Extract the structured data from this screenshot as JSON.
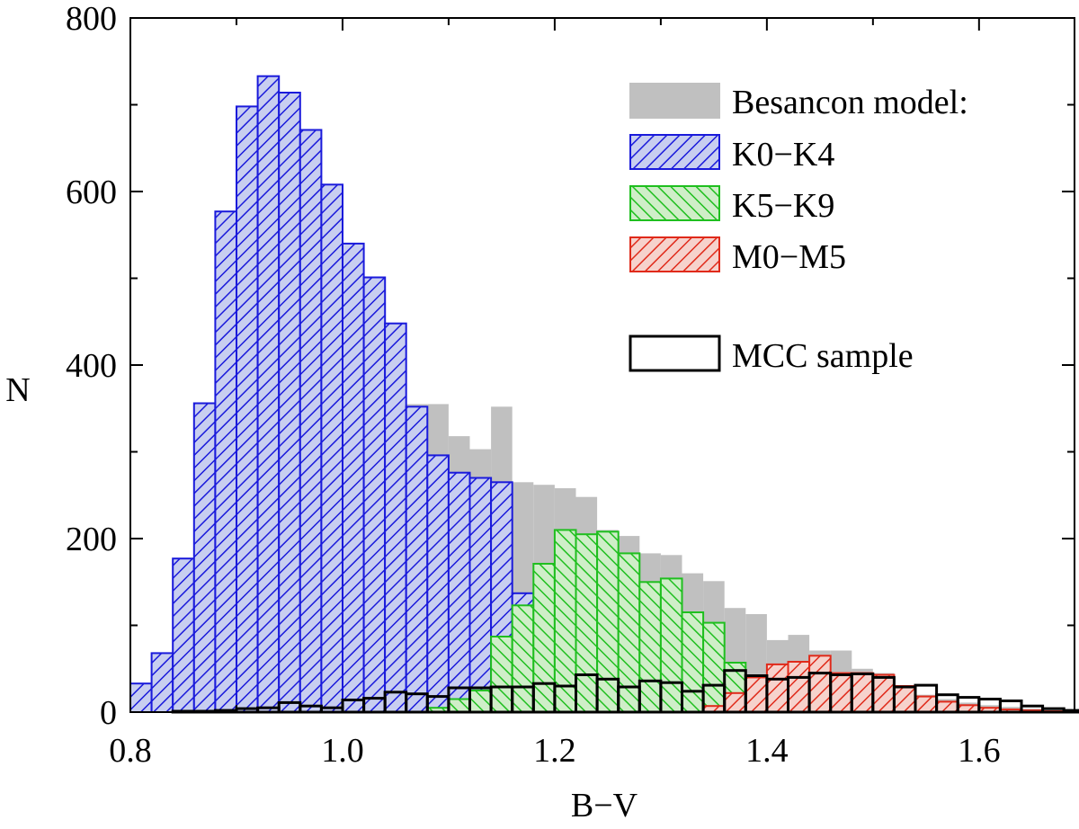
{
  "chart_data": {
    "type": "bar",
    "subtype": "overlaid-histogram",
    "title": "",
    "xlabel": "B−V",
    "ylabel": "N",
    "xlim": [
      0.8,
      1.69
    ],
    "ylim": [
      0,
      800
    ],
    "x_ticks": [
      "0.8",
      "1.0",
      "1.2",
      "1.4",
      "1.6"
    ],
    "y_ticks": [
      "0",
      "200",
      "400",
      "600",
      "800"
    ],
    "bin_start": 0.8,
    "bin_width": 0.02,
    "grid": false,
    "legend_position": "top-right",
    "series": [
      {
        "name": "Besancon model:",
        "style": "filled",
        "color": "#c0c0c0",
        "values": [
          33,
          68,
          177,
          356,
          577,
          698,
          733,
          714,
          671,
          608,
          540,
          501,
          448,
          355,
          355,
          318,
          303,
          352,
          265,
          262,
          258,
          248,
          210,
          203,
          183,
          181,
          160,
          151,
          120,
          113,
          83,
          89,
          71,
          71,
          50,
          45,
          25,
          20,
          15,
          11,
          8,
          6,
          4,
          3,
          2
        ]
      },
      {
        "name": "K0−K4",
        "style": "hatched",
        "color": "#1a1adb",
        "values": [
          33,
          68,
          177,
          356,
          577,
          698,
          733,
          714,
          671,
          608,
          540,
          501,
          448,
          352,
          296,
          276,
          270,
          265,
          137,
          85,
          37,
          5,
          3,
          0,
          0,
          0,
          0,
          0,
          0,
          0,
          0,
          0,
          0,
          0,
          0,
          0,
          0,
          0,
          0,
          0,
          0,
          0,
          0,
          0,
          0
        ]
      },
      {
        "name": "K5−K9",
        "style": "hatched",
        "color": "#1fbf1f",
        "values": [
          0,
          0,
          0,
          0,
          0,
          0,
          0,
          0,
          0,
          0,
          0,
          0,
          0,
          0,
          5,
          15,
          25,
          87,
          123,
          171,
          210,
          205,
          208,
          183,
          150,
          154,
          115,
          103,
          57,
          40,
          37,
          12,
          5,
          2,
          1,
          0,
          0,
          0,
          0,
          0,
          0,
          0,
          0,
          0,
          0
        ]
      },
      {
        "name": "M0−M5",
        "style": "hatched",
        "color": "#e02a1a",
        "values": [
          0,
          0,
          0,
          0,
          0,
          0,
          0,
          0,
          0,
          0,
          0,
          0,
          0,
          0,
          0,
          0,
          0,
          0,
          0,
          0,
          0,
          0,
          0,
          0,
          0,
          0,
          0,
          7,
          22,
          40,
          55,
          58,
          65,
          45,
          45,
          43,
          30,
          18,
          12,
          8,
          5,
          3,
          2,
          1,
          1
        ]
      },
      {
        "name": "MCC sample",
        "style": "outline",
        "color": "#000000",
        "values": [
          0,
          0,
          1,
          1,
          2,
          4,
          5,
          11,
          7,
          5,
          14,
          16,
          23,
          21,
          18,
          28,
          28,
          29,
          29,
          33,
          30,
          43,
          38,
          29,
          36,
          34,
          24,
          31,
          48,
          42,
          38,
          40,
          45,
          43,
          44,
          40,
          29,
          31,
          20,
          17,
          15,
          13,
          7,
          4,
          2
        ]
      }
    ]
  }
}
